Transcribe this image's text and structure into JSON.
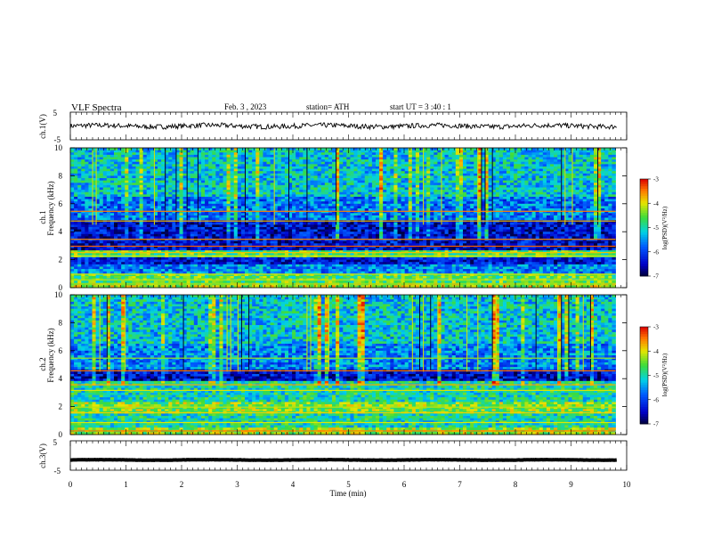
{
  "header": {
    "title": "VLF  Spectra",
    "date": "Feb. 3  , 2023",
    "station": "station= ATH",
    "start": "start  UT  =   3  :40 : 1"
  },
  "chart_data": [
    {
      "type": "line",
      "panel": "ch1-voltage",
      "ylabel": "ch.1(V)",
      "ylim": [
        -5,
        5
      ],
      "yticks": [
        "5",
        "-5"
      ],
      "xlim": [
        0,
        10
      ],
      "series_color": "#000000",
      "description_of_values": "noisy trace around 0 V, amplitude roughly ±1 V",
      "mean": 0.0,
      "amplitude": 0.9
    },
    {
      "type": "heatmap",
      "panel": "ch1-spectrogram",
      "channel": "ch.1",
      "ylabel": "Frequency  (kHz)",
      "ylim": [
        0,
        10
      ],
      "yticks": [
        "0",
        "2",
        "4",
        "6",
        "8",
        "10"
      ],
      "xlim": [
        0,
        10
      ],
      "x_data_extent": [
        0,
        9.8
      ],
      "colorbar": {
        "label": "log(PSD)(V²/Hz)",
        "range": [
          -7,
          -3
        ],
        "ticks": [
          "-3",
          "-4",
          "-5",
          "-6",
          "-7"
        ]
      },
      "bands": [
        {
          "f": [
            0.0,
            0.35
          ],
          "level": -4.2
        },
        {
          "f": [
            0.35,
            1.0
          ],
          "level": -4.6
        },
        {
          "f": [
            1.0,
            1.6
          ],
          "level": -5.6
        },
        {
          "f": [
            1.6,
            2.2
          ],
          "level": -6.3
        },
        {
          "f": [
            2.2,
            2.6
          ],
          "level": -4.6
        },
        {
          "f": [
            2.6,
            4.8
          ],
          "level": -6.4
        },
        {
          "f": [
            4.8,
            6.5
          ],
          "level": -5.7
        },
        {
          "f": [
            6.5,
            10.0
          ],
          "level": -5.2
        }
      ],
      "lines_khz": [
        0.3,
        0.6,
        1.0,
        2.3,
        2.55,
        3.0,
        3.5,
        4.8,
        5.5
      ]
    },
    {
      "type": "heatmap",
      "panel": "ch2-spectrogram",
      "channel": "ch.2",
      "ylabel": "Frequency  (kHz)",
      "ylim": [
        0,
        10
      ],
      "yticks": [
        "0",
        "2",
        "4",
        "6",
        "8",
        "10"
      ],
      "xlim": [
        0,
        10
      ],
      "x_data_extent": [
        0,
        9.8
      ],
      "colorbar": {
        "label": "log(PSD)(V²/Hz)",
        "range": [
          -7,
          -3
        ],
        "ticks": [
          "-3",
          "-4",
          "-5",
          "-6",
          "-7"
        ]
      },
      "bands": [
        {
          "f": [
            0.0,
            0.5
          ],
          "level": -4.3
        },
        {
          "f": [
            0.5,
            1.5
          ],
          "level": -5.0
        },
        {
          "f": [
            1.5,
            2.4
          ],
          "level": -4.4
        },
        {
          "f": [
            2.4,
            3.8
          ],
          "level": -5.0
        },
        {
          "f": [
            3.8,
            4.6
          ],
          "level": -6.4
        },
        {
          "f": [
            4.6,
            6.5
          ],
          "level": -5.6
        },
        {
          "f": [
            6.5,
            10.0
          ],
          "level": -5.2
        }
      ],
      "lines_khz": [
        0.3,
        0.9,
        1.6,
        2.0,
        3.2,
        3.6,
        4.6,
        5.5
      ]
    },
    {
      "type": "line",
      "panel": "ch3-voltage",
      "ylabel": "ch.3(V)",
      "ylim": [
        -5,
        5
      ],
      "yticks": [
        "5",
        "-5"
      ],
      "xlim": [
        0,
        10
      ],
      "series_color": "#000000",
      "mean": -1.5,
      "amplitude": 0.25
    }
  ],
  "x_axis": {
    "label": "Time  (min)",
    "ticks": [
      "0",
      "1",
      "2",
      "3",
      "4",
      "5",
      "6",
      "7",
      "8",
      "9",
      "10"
    ]
  }
}
